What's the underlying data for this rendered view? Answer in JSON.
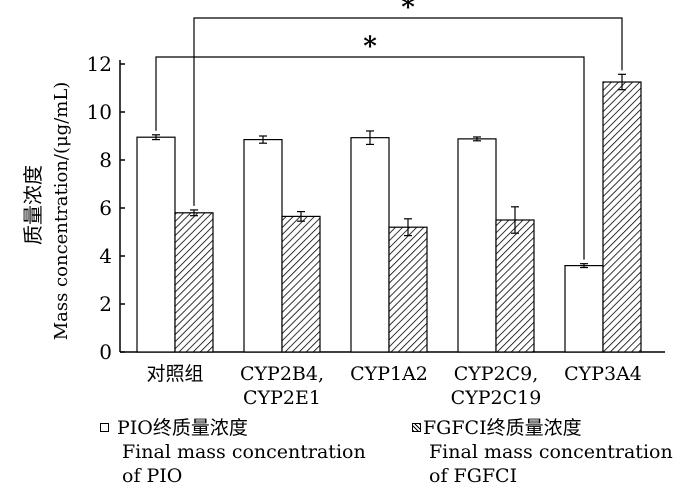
{
  "chart_data": {
    "type": "bar",
    "categories": [
      [
        "对照组"
      ],
      [
        "CYP2B4,",
        "CYP2E1"
      ],
      [
        "CYP1A2"
      ],
      [
        "CYP2C9,",
        "CYP2C19"
      ],
      [
        "CYP3A4"
      ]
    ],
    "series": [
      {
        "name": [
          "PIO终质量浓度",
          "Final mass concentration",
          "of PIO"
        ],
        "fill": "white",
        "values": [
          8.95,
          8.85,
          8.93,
          8.88,
          3.6
        ],
        "errors": [
          0.1,
          0.15,
          0.28,
          0.08,
          0.08
        ]
      },
      {
        "name": [
          "FGFCI终质量浓度",
          "Final mass concentration",
          "of FGFCI"
        ],
        "fill": "hatch",
        "values": [
          5.8,
          5.65,
          5.2,
          5.5,
          11.25
        ],
        "errors": [
          0.12,
          0.2,
          0.35,
          0.55,
          0.32
        ]
      }
    ],
    "ylabel_cn": "质量浓度",
    "ylabel_en": "Mass concentration/(μg/mL)",
    "ylim": [
      0,
      12
    ],
    "yticks": [
      "0",
      "2",
      "4",
      "6",
      "8",
      "10",
      "12"
    ],
    "significance": [
      {
        "label": "*",
        "from": [
          0,
          0
        ],
        "to": [
          4,
          0
        ]
      },
      {
        "label": "*",
        "from": [
          0,
          1
        ],
        "to": [
          4,
          1
        ]
      }
    ]
  },
  "colors": {
    "ink": "#000000",
    "background": "#ffffff"
  }
}
